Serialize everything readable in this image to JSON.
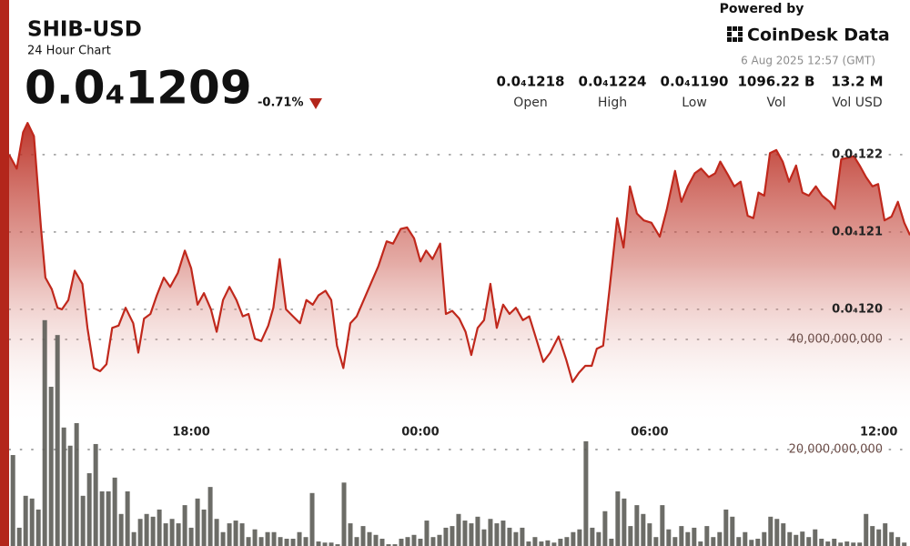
{
  "header": {
    "title": "SHIB-USD",
    "subtitle": "24 Hour Chart",
    "price": "0.0₄1209",
    "change": "-0.71%",
    "powered_by": "Powered by",
    "brand": "CoinDesk Data",
    "timestamp": "6 Aug 2025 12:57 (GMT)"
  },
  "stats": [
    {
      "value": "0.0₄1218",
      "label": "Open"
    },
    {
      "value": "0.0₄1224",
      "label": "High"
    },
    {
      "value": "0.0₄1190",
      "label": "Low"
    },
    {
      "value": "1096.22 B",
      "label": "Vol"
    },
    {
      "value": "13.2 M",
      "label": "Vol USD"
    }
  ],
  "chart_data": [
    {
      "type": "line",
      "color": "#c0281c",
      "grid": true,
      "xlim": [
        794,
        2209
      ],
      "ylim": [
        1.1694e-05,
        1.24e-05
      ],
      "xticks": [
        {
          "value": 1080,
          "label": "18:00"
        },
        {
          "value": 1440,
          "label": "00:00"
        },
        {
          "value": 1800,
          "label": "06:00"
        },
        {
          "value": 2160,
          "label": "12:00"
        }
      ],
      "yticks": [
        {
          "value": 1.22e-05,
          "label": "0.0₄122"
        },
        {
          "value": 1.21e-05,
          "label": "0.0₄121"
        },
        {
          "value": 1.2e-05,
          "label": "0.0₄120"
        }
      ],
      "x": [
        794,
        806,
        816,
        823,
        833,
        844,
        851,
        861,
        870,
        877,
        887,
        897,
        909,
        917,
        927,
        937,
        947,
        956,
        966,
        977,
        989,
        997,
        1006,
        1016,
        1026,
        1037,
        1047,
        1059,
        1070,
        1080,
        1090,
        1100,
        1111,
        1120,
        1130,
        1140,
        1151,
        1161,
        1170,
        1180,
        1190,
        1201,
        1209,
        1219,
        1229,
        1240,
        1251,
        1261,
        1271,
        1280,
        1291,
        1300,
        1309,
        1319,
        1330,
        1340,
        1351,
        1363,
        1374,
        1387,
        1397,
        1409,
        1419,
        1430,
        1440,
        1449,
        1459,
        1471,
        1480,
        1490,
        1501,
        1511,
        1520,
        1530,
        1540,
        1550,
        1560,
        1570,
        1580,
        1590,
        1601,
        1611,
        1623,
        1633,
        1644,
        1657,
        1669,
        1679,
        1689,
        1699,
        1709,
        1717,
        1727,
        1737,
        1749,
        1759,
        1769,
        1780,
        1791,
        1803,
        1816,
        1827,
        1840,
        1850,
        1860,
        1871,
        1881,
        1893,
        1903,
        1911,
        1923,
        1933,
        1943,
        1954,
        1963,
        1971,
        1980,
        1989,
        1999,
        2009,
        2019,
        2030,
        2040,
        2050,
        2061,
        2071,
        2083,
        2091,
        2101,
        2111,
        2121,
        2130,
        2140,
        2150,
        2159,
        2169,
        2180,
        2190,
        2200,
        2209
      ],
      "values": [
        1.22e-05,
        1.2182e-05,
        1.2229e-05,
        1.2241e-05,
        1.2224e-05,
        1.2106e-05,
        1.2041e-05,
        1.2026e-05,
        1.2002e-05,
        1.2e-05,
        1.2012e-05,
        1.205e-05,
        1.2033e-05,
        1.1976e-05,
        1.1924e-05,
        1.192e-05,
        1.1929e-05,
        1.1976e-05,
        1.1979e-05,
        1.2002e-05,
        1.1982e-05,
        1.1944e-05,
        1.1988e-05,
        1.1994e-05,
        1.2018e-05,
        1.2041e-05,
        1.2029e-05,
        1.2047e-05,
        1.2076e-05,
        1.2053e-05,
        1.2006e-05,
        1.2021e-05,
        1.2e-05,
        1.1971e-05,
        1.2012e-05,
        1.2029e-05,
        1.2012e-05,
        1.1991e-05,
        1.1994e-05,
        1.1962e-05,
        1.1959e-05,
        1.1979e-05,
        1.2002e-05,
        1.2065e-05,
        1.2e-05,
        1.1991e-05,
        1.1982e-05,
        1.2012e-05,
        1.2006e-05,
        1.2018e-05,
        1.2024e-05,
        1.2012e-05,
        1.1953e-05,
        1.1924e-05,
        1.1982e-05,
        1.1991e-05,
        1.2012e-05,
        1.2035e-05,
        1.2056e-05,
        1.2088e-05,
        1.2085e-05,
        1.2104e-05,
        1.2106e-05,
        1.2092e-05,
        1.2062e-05,
        1.2076e-05,
        1.2065e-05,
        1.2085e-05,
        1.1994e-05,
        1.1998e-05,
        1.1988e-05,
        1.1971e-05,
        1.1941e-05,
        1.1976e-05,
        1.1986e-05,
        1.2033e-05,
        1.1976e-05,
        1.2006e-05,
        1.1994e-05,
        1.2002e-05,
        1.1986e-05,
        1.1991e-05,
        1.1959e-05,
        1.1932e-05,
        1.1944e-05,
        1.1965e-05,
        1.1935e-05,
        1.1906e-05,
        1.1918e-05,
        1.1927e-05,
        1.1927e-05,
        1.1949e-05,
        1.1953e-05,
        1.2026e-05,
        1.2118e-05,
        1.208e-05,
        1.2159e-05,
        1.2124e-05,
        1.2115e-05,
        1.2112e-05,
        1.2094e-05,
        1.2129e-05,
        1.2179e-05,
        1.2139e-05,
        1.2159e-05,
        1.2176e-05,
        1.2182e-05,
        1.2171e-05,
        1.2176e-05,
        1.2191e-05,
        1.2174e-05,
        1.2159e-05,
        1.2165e-05,
        1.2121e-05,
        1.2118e-05,
        1.2151e-05,
        1.2147e-05,
        1.2202e-05,
        1.2206e-05,
        1.2191e-05,
        1.2165e-05,
        1.2186e-05,
        1.2151e-05,
        1.2147e-05,
        1.2159e-05,
        1.2147e-05,
        1.2139e-05,
        1.213e-05,
        1.2194e-05,
        1.2196e-05,
        1.2198e-05,
        1.2186e-05,
        1.2171e-05,
        1.2159e-05,
        1.2162e-05,
        1.2115e-05,
        1.212e-05,
        1.2139e-05,
        1.2112e-05,
        1.2096e-05
      ]
    },
    {
      "type": "bar",
      "color": "#5c5c57",
      "grid": true,
      "xlim": [
        794,
        2209
      ],
      "ylim": [
        2480000000.0,
        101650000000.0
      ],
      "yticks": [
        {
          "value": 40000000000.0,
          "label": "40,000,000,000"
        },
        {
          "value": 20000000000.0,
          "label": "20,000,000,000"
        }
      ],
      "x": [
        800,
        810,
        820,
        830,
        840,
        850,
        860,
        870,
        880,
        890,
        900,
        910,
        920,
        930,
        940,
        950,
        960,
        970,
        980,
        990,
        1000,
        1010,
        1020,
        1030,
        1040,
        1050,
        1060,
        1070,
        1080,
        1090,
        1100,
        1110,
        1120,
        1130,
        1140,
        1150,
        1160,
        1170,
        1180,
        1190,
        1200,
        1210,
        1220,
        1230,
        1240,
        1250,
        1260,
        1270,
        1280,
        1290,
        1300,
        1310,
        1320,
        1330,
        1340,
        1350,
        1360,
        1370,
        1380,
        1390,
        1400,
        1410,
        1420,
        1430,
        1440,
        1450,
        1460,
        1470,
        1480,
        1490,
        1500,
        1510,
        1520,
        1530,
        1540,
        1550,
        1560,
        1570,
        1580,
        1590,
        1600,
        1610,
        1620,
        1630,
        1640,
        1650,
        1660,
        1670,
        1680,
        1690,
        1700,
        1710,
        1720,
        1730,
        1740,
        1750,
        1760,
        1770,
        1780,
        1790,
        1800,
        1810,
        1820,
        1830,
        1840,
        1850,
        1860,
        1870,
        1880,
        1890,
        1900,
        1910,
        1920,
        1930,
        1940,
        1950,
        1960,
        1970,
        1980,
        1990,
        2000,
        2010,
        2020,
        2030,
        2040,
        2050,
        2060,
        2070,
        2080,
        2090,
        2100,
        2110,
        2120,
        2130,
        2140,
        2150,
        2160,
        2170,
        2180,
        2190,
        2200
      ],
      "values": [
        19000000000.0,
        5800000000.0,
        11600000000.0,
        11100000000.0,
        9100000000.0,
        43500000000.0,
        31400000000.0,
        40800000000.0,
        24000000000.0,
        20700000000.0,
        24800000000.0,
        11600000000.0,
        15700000000.0,
        21000000000.0,
        12400000000.0,
        12400000000.0,
        14900000000.0,
        8300000000.0,
        12400000000.0,
        5000000000.0,
        7400000000.0,
        8300000000.0,
        7800000000.0,
        9100000000.0,
        6600000000.0,
        7400000000.0,
        6600000000.0,
        9900000000.0,
        5800000000.0,
        11100000000.0,
        9100000000.0,
        13200000000.0,
        7400000000.0,
        5000000000.0,
        6600000000.0,
        7100000000.0,
        6600000000.0,
        4100000000.0,
        5500000000.0,
        4100000000.0,
        5000000000.0,
        5000000000.0,
        4100000000.0,
        3800000000.0,
        3800000000.0,
        5000000000.0,
        4100000000.0,
        12100000000.0,
        3300000000.0,
        3100000000.0,
        3100000000.0,
        2800000000.0,
        14000000000.0,
        6600000000.0,
        4100000000.0,
        6100000000.0,
        5000000000.0,
        4500000000.0,
        3800000000.0,
        2800000000.0,
        2800000000.0,
        3800000000.0,
        4100000000.0,
        4500000000.0,
        3800000000.0,
        7100000000.0,
        4100000000.0,
        4500000000.0,
        5800000000.0,
        6100000000.0,
        8300000000.0,
        7100000000.0,
        6600000000.0,
        7800000000.0,
        5500000000.0,
        7400000000.0,
        6600000000.0,
        7100000000.0,
        5800000000.0,
        5000000000.0,
        5800000000.0,
        3300000000.0,
        4100000000.0,
        3300000000.0,
        3500000000.0,
        3100000000.0,
        3800000000.0,
        4100000000.0,
        5000000000.0,
        5500000000.0,
        21500000000.0,
        5800000000.0,
        5000000000.0,
        8800000000.0,
        3800000000.0,
        12400000000.0,
        11100000000.0,
        6100000000.0,
        9900000000.0,
        8300000000.0,
        6600000000.0,
        4100000000.0,
        9900000000.0,
        5500000000.0,
        4100000000.0,
        6100000000.0,
        5000000000.0,
        5800000000.0,
        3300000000.0,
        6100000000.0,
        4100000000.0,
        5000000000.0,
        9100000000.0,
        7800000000.0,
        4100000000.0,
        5000000000.0,
        3600000000.0,
        3800000000.0,
        5000000000.0,
        7800000000.0,
        7400000000.0,
        6600000000.0,
        5000000000.0,
        4500000000.0,
        5100000000.0,
        4100000000.0,
        5500000000.0,
        3800000000.0,
        3300000000.0,
        3800000000.0,
        3100000000.0,
        3300000000.0,
        3100000000.0,
        3100000000.0,
        8300000000.0,
        6100000000.0,
        5500000000.0,
        6600000000.0,
        5000000000.0,
        4100000000.0,
        3100000000.0
      ]
    }
  ]
}
